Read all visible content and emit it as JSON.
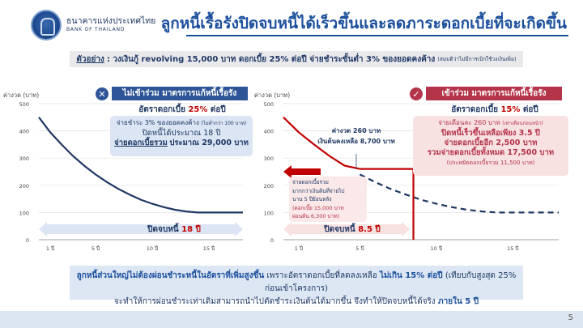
{
  "header": {
    "bank_name_th": "ธนาคารแห่งประเทศไทย",
    "bank_name_en": "BANK OF THAILAND",
    "title": "ลูกหนี้เรื้อรังปิดจบหนี้ได้เร็วขึ้นและลดภาระดอกเบี้ยที่จะเกิดขึ้น"
  },
  "example": {
    "label": "ตัวอย่าง",
    "text": ": วงเงินกู้ revolving 15,000 บาท ดอกเบี้ย 25% ต่อปี จ่ายชำระขั้นต่ำ 3% ของยอดคงค้าง",
    "note": "(สมมติว่าไม่มีการเบิกใช้วงเงินเพิ่ม)"
  },
  "left_panel": {
    "header": "ไม่เข้าร่วม มาตรการแก้หนี้เรื้อรัง",
    "icon": "close-icon",
    "rate_prefix": "อัตราดอกเบี้ย",
    "rate_value": "25%",
    "rate_suffix": "ต่อปี",
    "info_line1": "จ่ายชำระ 3% ของยอดคงค้าง",
    "info_line1_note": "(ไม่ต่ำกว่า 100 บาท)",
    "info_line2": "ปิดหนี้ได้ประมาณ 18 ปี",
    "info_line3_prefix": "จ่ายดอกเบี้ยรวม",
    "info_line3_value": "ประมาณ 29,000 บาท",
    "close_label": "ปิดจบหนี้",
    "close_value": "18 ปี"
  },
  "right_panel": {
    "header": "เข้าร่วม มาตรการแก้หนี้เรื้อรัง",
    "icon": "check-icon",
    "rate_prefix": "อัตราดอกเบี้ย",
    "rate_value": "15%",
    "rate_suffix": "ต่อปี",
    "info_line1": "จ่ายเดือนละ 260 บาท",
    "info_line1_note": "(เท่าเดือนก่อนหน้า)",
    "info_line2": "ปิดหนี้เร็วขึ้นเหลือเพียง 3.5 ปี",
    "info_line3": "จ่ายดอกเบี้ยอีก 2,500 บาท",
    "info_line4": "รวมจ่ายดอกเบี้ยทั้งหมด 17,500 บาท",
    "info_line5": "(ประหยัดดอกเบี้ยรวม 11,500 บาท)",
    "annot_installment": "ค่างวด 260 บาท",
    "annot_balance": "เงินต้นคงเหลือ 8,700 บาท",
    "annot_interest_1": "จ่ายดอกเบี้ยรวม",
    "annot_interest_2": "มากกว่าเงินต้นที่จ่ายไป",
    "annot_interest_3": "นาน 5 ปีย้อนหลัง",
    "annot_interest_4": "(ดอกเบี้ย 15,000 บาท",
    "annot_interest_5": "ผ่อนต้น 6,300 บาท)",
    "close_label": "ปิดจบหนี้",
    "close_value": "8.5 ปี"
  },
  "bottom": {
    "line1_a": "ลูกหนี้ส่วนใหญ่ไม่ต้องผ่อนชำระหนี้ในอัตราที่เพิ่มสูงขึ้น",
    "line1_b": "เพราะอัตราดอกเบี้ยที่ลดลงเหลือ",
    "line1_c": "ไม่เกิน 15% ต่อปี",
    "line1_d": "(เทียบกับสูงสุด 25% ก่อนเข้าโครงการ)",
    "line2_a": "จะทำให้การผ่อนชำระเท่าเดิมสามารถนำไปตัดชำระเงินต้นได้มากขึ้น จึงทำให้ปิดจบหนี้ได้จริง",
    "line2_b": "ภายใน 5 ปี"
  },
  "page_number": "5",
  "colors": {
    "navy": "#1f3864",
    "blue": "#2e5597",
    "red": "#c00000",
    "pink_box": "#f8e1e1",
    "blue_box": "#dbe5f3",
    "maroon": "#b4344a"
  },
  "chart_data": [
    {
      "type": "line",
      "name": "left",
      "title": "",
      "ylabel": "ค่างวด (บาท)",
      "xlabel": "",
      "y_ticks": [
        0,
        100,
        200,
        300,
        400,
        500
      ],
      "x_ticks": [
        "1 ปี",
        "5 ปี",
        "10 ปี",
        "15 ปี"
      ],
      "x_tick_values": [
        1,
        5,
        10,
        15
      ],
      "ylim": [
        0,
        500
      ],
      "xlim": [
        0,
        18
      ],
      "series": [
        {
          "x": [
            0,
            1,
            2,
            3,
            4,
            5,
            6,
            7,
            8,
            9,
            10,
            11,
            12,
            13,
            14,
            15,
            18
          ],
          "values": [
            450,
            395,
            350,
            308,
            272,
            240,
            212,
            187,
            166,
            147,
            132,
            120,
            110,
            104,
            100,
            100,
            100
          ]
        }
      ]
    },
    {
      "type": "line",
      "name": "right",
      "title": "",
      "ylabel": "ค่างวด (บาท)",
      "xlabel": "",
      "y_ticks": [
        0,
        100,
        200,
        300,
        400,
        500
      ],
      "x_ticks": [
        "1 ปี",
        "5 ปี",
        "10 ปี",
        "15 ปี"
      ],
      "x_tick_values": [
        1,
        5,
        10,
        15
      ],
      "ylim": [
        0,
        500
      ],
      "xlim": [
        0,
        18
      ],
      "series": [
        {
          "x": [
            0,
            1,
            2,
            3,
            4,
            5
          ],
          "values": [
            450,
            395,
            350,
            308,
            272,
            260
          ]
        },
        {
          "x": [
            5,
            6,
            7,
            8,
            9,
            10,
            11,
            12,
            13,
            14,
            15,
            16,
            17,
            18
          ],
          "values": [
            240,
            212,
            187,
            166,
            147,
            132,
            120,
            110,
            104,
            100,
            100,
            100,
            100,
            100
          ]
        }
      ],
      "step_line": {
        "y": 260,
        "x_from": 5,
        "x_to": 8.5
      }
    }
  ]
}
